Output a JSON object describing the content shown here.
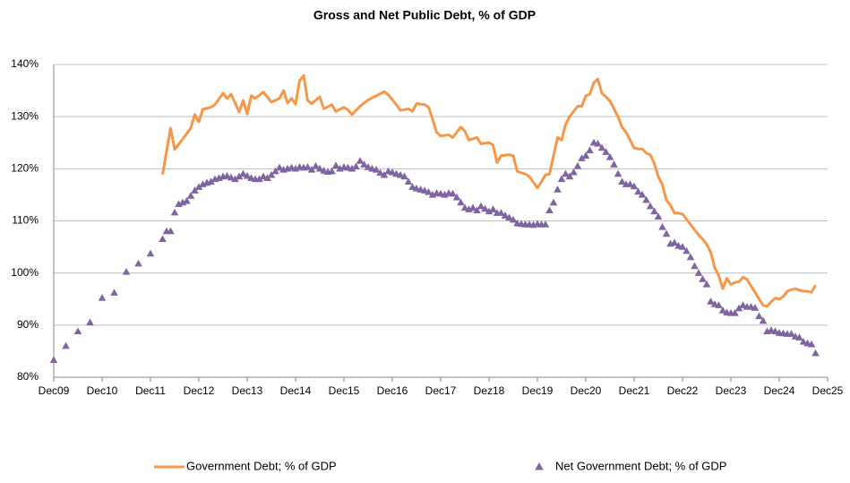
{
  "chart_data": {
    "type": "line",
    "title": "Gross and Net Public Debt, % of GDP",
    "xlim": [
      "2009-12",
      "2025-12"
    ],
    "xticks": [
      {
        "value": "2009-12",
        "label": "Dec09"
      },
      {
        "value": "2010-12",
        "label": "Dec10"
      },
      {
        "value": "2011-12",
        "label": "Dec11"
      },
      {
        "value": "2012-12",
        "label": "Dec12"
      },
      {
        "value": "2013-12",
        "label": "Dec13"
      },
      {
        "value": "2014-12",
        "label": "Dec14"
      },
      {
        "value": "2015-12",
        "label": "Dec15"
      },
      {
        "value": "2016-12",
        "label": "Dec16"
      },
      {
        "value": "2017-12",
        "label": "Dec17"
      },
      {
        "value": "2018-12",
        "label": "Dez18"
      },
      {
        "value": "2019-12",
        "label": "Dec19"
      },
      {
        "value": "2020-12",
        "label": "Dec20"
      },
      {
        "value": "2021-12",
        "label": "Dec21"
      },
      {
        "value": "2022-12",
        "label": "Dec22"
      },
      {
        "value": "2023-12",
        "label": "Dec23"
      },
      {
        "value": "2024-12",
        "label": "Dec24"
      },
      {
        "value": "2025-12",
        "label": "Dec25"
      }
    ],
    "ylim": [
      80,
      140
    ],
    "yticks": [
      {
        "value": 80,
        "label": "80%"
      },
      {
        "value": 90,
        "label": "90%"
      },
      {
        "value": 100,
        "label": "100%"
      },
      {
        "value": 110,
        "label": "110%"
      },
      {
        "value": 120,
        "label": "120%"
      },
      {
        "value": 130,
        "label": "130%"
      },
      {
        "value": 140,
        "label": "140%"
      }
    ],
    "grid": true,
    "legend": "bottom",
    "series": [
      {
        "name": "Government Debt; % of GDP",
        "color": "#f79646",
        "type": "line",
        "x": [
          "2012-03",
          "2012-05",
          "2012-06",
          "2012-08",
          "2012-10",
          "2012-11",
          "2012-12",
          "2013-01",
          "2013-03",
          "2013-04",
          "2013-06",
          "2013-07",
          "2013-08",
          "2013-10",
          "2013-11",
          "2013-12",
          "2014-01",
          "2014-02",
          "2014-04",
          "2014-05",
          "2014-06",
          "2014-08",
          "2014-09",
          "2014-10",
          "2014-11",
          "2014-12",
          "2015-01",
          "2015-02",
          "2015-03",
          "2015-04",
          "2015-06",
          "2015-07",
          "2015-09",
          "2015-10",
          "2015-12",
          "2016-01",
          "2016-02",
          "2016-04",
          "2016-06",
          "2016-08",
          "2016-10",
          "2016-11",
          "2017-01",
          "2017-02",
          "2017-04",
          "2017-05",
          "2017-06",
          "2017-08",
          "2017-09",
          "2017-10",
          "2017-11",
          "2017-12",
          "2018-02",
          "2018-03",
          "2018-05",
          "2018-06",
          "2018-07",
          "2018-09",
          "2018-10",
          "2018-12",
          "2019-01",
          "2019-02",
          "2019-03",
          "2019-05",
          "2019-06",
          "2019-07",
          "2019-09",
          "2019-10",
          "2019-12",
          "2020-01",
          "2020-02",
          "2020-03",
          "2020-05",
          "2020-06",
          "2020-07",
          "2020-08",
          "2020-09",
          "2020-10",
          "2020-11",
          "2020-12",
          "2021-01",
          "2021-02",
          "2021-03",
          "2021-04",
          "2021-05",
          "2021-06",
          "2021-07",
          "2021-08",
          "2021-09",
          "2021-10",
          "2021-11",
          "2021-12",
          "2022-01",
          "2022-02",
          "2022-03",
          "2022-04",
          "2022-05",
          "2022-06",
          "2022-07",
          "2022-08",
          "2022-09",
          "2022-10",
          "2022-11",
          "2022-12",
          "2023-01",
          "2023-02",
          "2023-03",
          "2023-04",
          "2023-05",
          "2023-06",
          "2023-07",
          "2023-08",
          "2023-09",
          "2023-10",
          "2023-11",
          "2023-12",
          "2024-01",
          "2024-02",
          "2024-03",
          "2024-04",
          "2024-05",
          "2024-06",
          "2024-07",
          "2024-08",
          "2024-09",
          "2024-10",
          "2024-11",
          "2024-12",
          "2025-01",
          "2025-02",
          "2025-03",
          "2025-04",
          "2025-05",
          "2025-06",
          "2025-07",
          "2025-08",
          "2025-09"
        ],
        "values": [
          118.9,
          127.8,
          123.7,
          125.7,
          127.8,
          130.4,
          129,
          131.4,
          131.8,
          132.3,
          134.5,
          133.5,
          134.3,
          130.9,
          133.1,
          130.5,
          134,
          133.5,
          134.7,
          133.8,
          132.8,
          133.5,
          135,
          132.6,
          133.5,
          132.4,
          136.9,
          137.9,
          133.1,
          132.5,
          133.8,
          131.5,
          132.3,
          131,
          131.8,
          131.3,
          130.4,
          132,
          133.2,
          134,
          134.8,
          134.2,
          132.3,
          131.2,
          131.5,
          131,
          132.5,
          132.3,
          131.8,
          129.5,
          127,
          126.3,
          126.5,
          126,
          128,
          127.2,
          125.5,
          126,
          124.8,
          125,
          124.5,
          121.2,
          122.5,
          122.7,
          122.5,
          119.5,
          119,
          118.5,
          116.3,
          117.5,
          118.8,
          119,
          126,
          125.5,
          128.5,
          130,
          131,
          132,
          132,
          134,
          134.3,
          136.5,
          137.2,
          134.5,
          133.8,
          133,
          131.5,
          130,
          128,
          127,
          125.5,
          124,
          123.8,
          123.8,
          123,
          122.7,
          121,
          118.5,
          117,
          114,
          113,
          111.5,
          111.5,
          111.3,
          110.3,
          109.3,
          108.3,
          107.3,
          106.5,
          105.5,
          104,
          101,
          99.5,
          97,
          99,
          97.8,
          98.2,
          98.3,
          99.2,
          98.8,
          97.5,
          96.3,
          95,
          93.8,
          93.6,
          94.5,
          95.2,
          95,
          95.5,
          96.5,
          96.8,
          97,
          96.7,
          96.5,
          96.5,
          96.3,
          97.7
        ]
      },
      {
        "name": "Net Government Debt; % of GDP",
        "color": "#8064a2",
        "type": "scatter",
        "marker": "triangle",
        "x": [
          "2009-12",
          "2010-03",
          "2010-06",
          "2010-09",
          "2010-12",
          "2011-03",
          "2011-06",
          "2011-09",
          "2011-12",
          "2012-03",
          "2012-04",
          "2012-05",
          "2012-06",
          "2012-07",
          "2012-08",
          "2012-09",
          "2012-10",
          "2012-11",
          "2012-12",
          "2013-01",
          "2013-02",
          "2013-03",
          "2013-04",
          "2013-05",
          "2013-06",
          "2013-07",
          "2013-08",
          "2013-09",
          "2013-10",
          "2013-11",
          "2013-12",
          "2014-01",
          "2014-02",
          "2014-03",
          "2014-04",
          "2014-05",
          "2014-06",
          "2014-07",
          "2014-08",
          "2014-09",
          "2014-10",
          "2014-11",
          "2014-12",
          "2015-01",
          "2015-02",
          "2015-03",
          "2015-04",
          "2015-05",
          "2015-06",
          "2015-07",
          "2015-08",
          "2015-09",
          "2015-10",
          "2015-11",
          "2015-12",
          "2016-01",
          "2016-02",
          "2016-03",
          "2016-04",
          "2016-05",
          "2016-06",
          "2016-07",
          "2016-08",
          "2016-09",
          "2016-10",
          "2016-11",
          "2016-12",
          "2017-01",
          "2017-02",
          "2017-03",
          "2017-04",
          "2017-05",
          "2017-06",
          "2017-07",
          "2017-08",
          "2017-09",
          "2017-10",
          "2017-11",
          "2017-12",
          "2018-01",
          "2018-02",
          "2018-03",
          "2018-04",
          "2018-05",
          "2018-06",
          "2018-07",
          "2018-08",
          "2018-09",
          "2018-10",
          "2018-11",
          "2018-12",
          "2019-01",
          "2019-02",
          "2019-03",
          "2019-04",
          "2019-05",
          "2019-06",
          "2019-07",
          "2019-08",
          "2019-09",
          "2019-10",
          "2019-11",
          "2019-12",
          "2020-01",
          "2020-02",
          "2020-03",
          "2020-04",
          "2020-05",
          "2020-06",
          "2020-07",
          "2020-08",
          "2020-09",
          "2020-10",
          "2020-11",
          "2020-12",
          "2021-01",
          "2021-02",
          "2021-03",
          "2021-04",
          "2021-05",
          "2021-06",
          "2021-07",
          "2021-08",
          "2021-09",
          "2021-10",
          "2021-11",
          "2021-12",
          "2022-01",
          "2022-02",
          "2022-03",
          "2022-04",
          "2022-05",
          "2022-06",
          "2022-07",
          "2022-08",
          "2022-09",
          "2022-10",
          "2022-11",
          "2022-12",
          "2023-01",
          "2023-02",
          "2023-03",
          "2023-04",
          "2023-05",
          "2023-06",
          "2023-07",
          "2023-08",
          "2023-09",
          "2023-10",
          "2023-11",
          "2023-12",
          "2024-01",
          "2024-02",
          "2024-03",
          "2024-04",
          "2024-05",
          "2024-06",
          "2024-07",
          "2024-08",
          "2024-09",
          "2024-10",
          "2024-11",
          "2024-12",
          "2025-01",
          "2025-02",
          "2025-03",
          "2025-04",
          "2025-05",
          "2025-06",
          "2025-07",
          "2025-08",
          "2025-09"
        ],
        "values": [
          83.3,
          86,
          88.8,
          90.5,
          95.2,
          96.2,
          100.2,
          101.8,
          103.7,
          106.5,
          108,
          108,
          111.6,
          113.2,
          113.5,
          113.8,
          114.8,
          115.8,
          116.5,
          117,
          117.3,
          117.5,
          118,
          118.2,
          118.5,
          118.6,
          118.3,
          118,
          118.5,
          119,
          118.6,
          118.2,
          118,
          118,
          118.5,
          118.2,
          118.8,
          119.5,
          120.2,
          119.8,
          120,
          120.2,
          120,
          120.3,
          120.2,
          120.3,
          119.8,
          120.5,
          120,
          119.6,
          119.4,
          119.5,
          120.6,
          120,
          120.3,
          120.2,
          120,
          120.4,
          121.5,
          120.8,
          120.3,
          120,
          119.8,
          119.2,
          118.8,
          119.5,
          119.3,
          119,
          118.8,
          118.5,
          117.5,
          116.5,
          116.2,
          116,
          115.8,
          115.5,
          115,
          115.3,
          115.2,
          115,
          115.3,
          115.2,
          114.5,
          113.5,
          112.5,
          112.2,
          112.5,
          112,
          112.8,
          112.3,
          111.8,
          112.2,
          111.5,
          111.5,
          111,
          110.6,
          110.2,
          109.5,
          109.4,
          109.3,
          109.3,
          109.2,
          109.4,
          109.3,
          109.3,
          112,
          113.5,
          116,
          118,
          119,
          118.5,
          119.3,
          120.5,
          122,
          122.5,
          123.5,
          125,
          124.8,
          124,
          123.2,
          122.2,
          120.8,
          119,
          117.5,
          117,
          117,
          116.6,
          115.6,
          115,
          114,
          112.8,
          111.8,
          110.8,
          108.8,
          107.5,
          105.6,
          105.8,
          105.2,
          105,
          104.2,
          103,
          101.3,
          100,
          98.8,
          97.8,
          94.5,
          94,
          93.8,
          92.8,
          92.4,
          92.3,
          92.3,
          93.2,
          93.8,
          93.5,
          93.5,
          93.3,
          91.7,
          90.8,
          88.8,
          89,
          88.8,
          88.5,
          88.4,
          88.3,
          88.3,
          87.8,
          87.6,
          86.8,
          86.5,
          86.3,
          84.6
        ]
      }
    ]
  }
}
